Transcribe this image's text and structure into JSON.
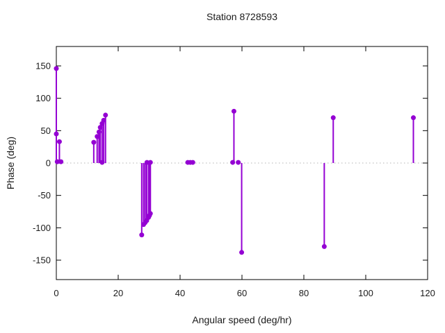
{
  "window": {
    "background": "#ffffff"
  },
  "chart_data": {
    "type": "scatter",
    "style": "impulses-with-points",
    "title": "Station 8728593",
    "xlabel": "Angular speed (deg/hr)",
    "ylabel": "Phase (deg)",
    "xlim": [
      0,
      120
    ],
    "ylim": [
      -180,
      180
    ],
    "x_ticks": [
      0,
      20,
      40,
      60,
      80,
      100,
      120
    ],
    "y_ticks": [
      -150,
      -100,
      -50,
      0,
      50,
      100,
      150
    ],
    "grid": false,
    "zero_line": true,
    "zero_line_color": "#b3b3b3",
    "point_color": "#9400d3",
    "axis_color": "#000000",
    "legend": "none",
    "points": [
      [
        0,
        146
      ],
      [
        0,
        45
      ],
      [
        1,
        33
      ],
      [
        0.3,
        2
      ],
      [
        1.5,
        2
      ],
      [
        12.1,
        32
      ],
      [
        13.2,
        41
      ],
      [
        13.8,
        48
      ],
      [
        14.2,
        55
      ],
      [
        14.8,
        61
      ],
      [
        15.3,
        66
      ],
      [
        15.9,
        74
      ],
      [
        14.8,
        1
      ],
      [
        27.6,
        -111
      ],
      [
        28.2,
        -95
      ],
      [
        28.7,
        -92
      ],
      [
        29.2,
        -89
      ],
      [
        29.8,
        -84
      ],
      [
        30.1,
        -81
      ],
      [
        30.4,
        -78
      ],
      [
        29.3,
        1
      ],
      [
        30.4,
        1
      ],
      [
        42.5,
        1
      ],
      [
        43.3,
        1
      ],
      [
        44.1,
        1
      ],
      [
        57.0,
        1
      ],
      [
        57.4,
        80
      ],
      [
        58.8,
        1
      ],
      [
        59.9,
        -138
      ],
      [
        86.6,
        -129
      ],
      [
        89.5,
        70
      ],
      [
        115.4,
        70
      ]
    ]
  }
}
